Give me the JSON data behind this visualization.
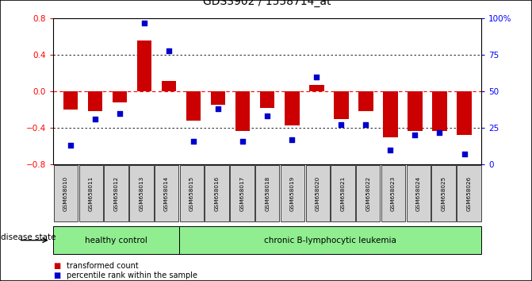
{
  "title": "GDS3902 / 1558714_at",
  "samples": [
    "GSM658010",
    "GSM658011",
    "GSM658012",
    "GSM658013",
    "GSM658014",
    "GSM658015",
    "GSM658016",
    "GSM658017",
    "GSM658018",
    "GSM658019",
    "GSM658020",
    "GSM658021",
    "GSM658022",
    "GSM658023",
    "GSM658024",
    "GSM658025",
    "GSM658026"
  ],
  "red_bars": [
    -0.2,
    -0.22,
    -0.12,
    0.56,
    0.11,
    -0.32,
    -0.15,
    -0.43,
    -0.18,
    -0.37,
    0.07,
    -0.3,
    -0.22,
    -0.5,
    -0.43,
    -0.43,
    -0.48
  ],
  "blue_dots": [
    13,
    31,
    35,
    97,
    78,
    16,
    38,
    16,
    33,
    17,
    60,
    27,
    27,
    10,
    20,
    22,
    7
  ],
  "ylim_left": [
    -0.8,
    0.8
  ],
  "ylim_right": [
    0,
    100
  ],
  "yticks_left": [
    -0.8,
    -0.4,
    0,
    0.4,
    0.8
  ],
  "yticks_right": [
    0,
    25,
    50,
    75,
    100
  ],
  "ytick_right_labels": [
    "0",
    "25",
    "50",
    "75",
    "100%"
  ],
  "bar_color": "#cc0000",
  "dot_color": "#0000cc",
  "healthy_count": 5,
  "group_labels": [
    "healthy control",
    "chronic B-lymphocytic leukemia"
  ],
  "disease_state_label": "disease state",
  "legend_items": [
    "transformed count",
    "percentile rank within the sample"
  ],
  "xticklabel_bg": "#d3d3d3",
  "green_color": "#90ee90"
}
